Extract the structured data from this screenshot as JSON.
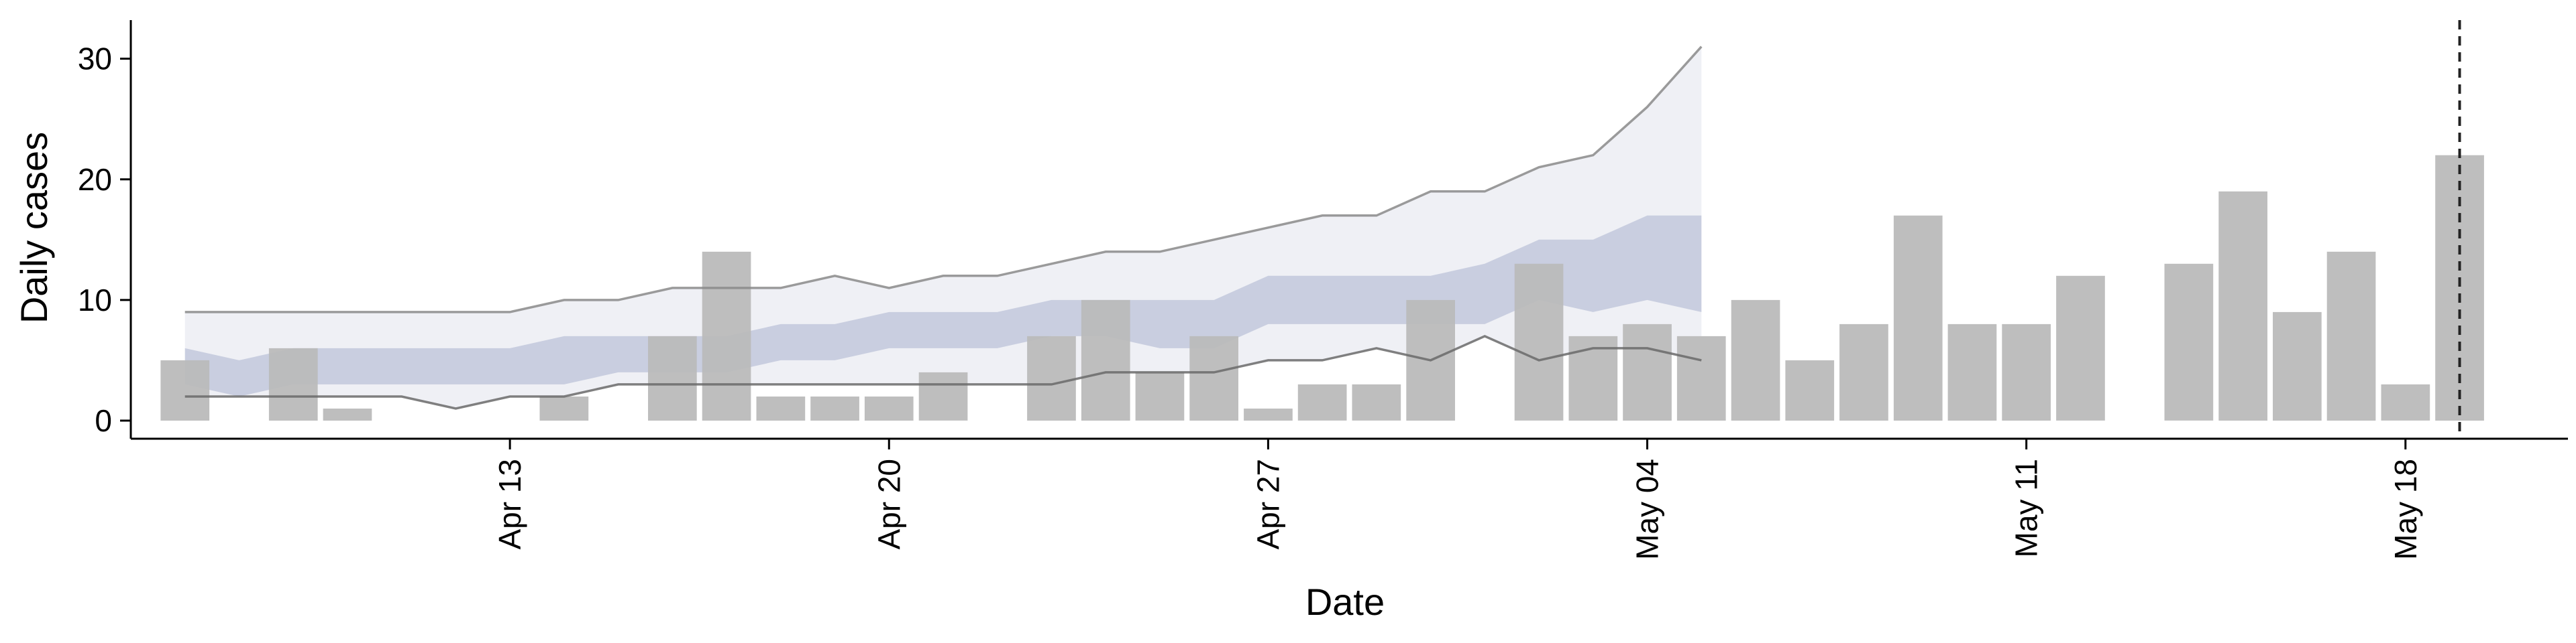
{
  "chart_data": {
    "type": "bar",
    "title": "",
    "xlabel": "Date",
    "ylabel": "Daily cases",
    "ylim": [
      -1.5,
      33.2
    ],
    "y_ticks": [
      0,
      10,
      20,
      30
    ],
    "x_ticks": [
      {
        "date": "2020-04-13",
        "label": "Apr 13"
      },
      {
        "date": "2020-04-20",
        "label": "Apr 20"
      },
      {
        "date": "2020-04-27",
        "label": "Apr 27"
      },
      {
        "date": "2020-05-04",
        "label": "May 04"
      },
      {
        "date": "2020-05-11",
        "label": "May 11"
      },
      {
        "date": "2020-05-18",
        "label": "May 18"
      }
    ],
    "x_range": [
      "2020-04-06",
      "2020-05-21"
    ],
    "grid": false,
    "legend": "none",
    "colors": {
      "bars": "#bbbbbb",
      "outer_band": "#dfe1ec",
      "inner_band": "#aab3cd",
      "outer_line": "#8a8a8a",
      "lower_line": "#6a6a6a",
      "vline": "#222222"
    },
    "bars": [
      {
        "date": "2020-04-07",
        "value": 5
      },
      {
        "date": "2020-04-09",
        "value": 6
      },
      {
        "date": "2020-04-10",
        "value": 1
      },
      {
        "date": "2020-04-14",
        "value": 2
      },
      {
        "date": "2020-04-16",
        "value": 7
      },
      {
        "date": "2020-04-17",
        "value": 14
      },
      {
        "date": "2020-04-18",
        "value": 2
      },
      {
        "date": "2020-04-19",
        "value": 2
      },
      {
        "date": "2020-04-20",
        "value": 2
      },
      {
        "date": "2020-04-21",
        "value": 4
      },
      {
        "date": "2020-04-23",
        "value": 7
      },
      {
        "date": "2020-04-24",
        "value": 10
      },
      {
        "date": "2020-04-25",
        "value": 4
      },
      {
        "date": "2020-04-26",
        "value": 7
      },
      {
        "date": "2020-04-27",
        "value": 1
      },
      {
        "date": "2020-04-28",
        "value": 3
      },
      {
        "date": "2020-04-29",
        "value": 3
      },
      {
        "date": "2020-04-30",
        "value": 10
      },
      {
        "date": "2020-05-02",
        "value": 13
      },
      {
        "date": "2020-05-03",
        "value": 7
      },
      {
        "date": "2020-05-04",
        "value": 8
      },
      {
        "date": "2020-05-05",
        "value": 7
      },
      {
        "date": "2020-05-06",
        "value": 10
      },
      {
        "date": "2020-05-07",
        "value": 5
      },
      {
        "date": "2020-05-08",
        "value": 8
      },
      {
        "date": "2020-05-09",
        "value": 17
      },
      {
        "date": "2020-05-10",
        "value": 8
      },
      {
        "date": "2020-05-11",
        "value": 8
      },
      {
        "date": "2020-05-12",
        "value": 12
      },
      {
        "date": "2020-05-14",
        "value": 13
      },
      {
        "date": "2020-05-15",
        "value": 19
      },
      {
        "date": "2020-05-16",
        "value": 9
      },
      {
        "date": "2020-05-17",
        "value": 14
      },
      {
        "date": "2020-05-18",
        "value": 3
      },
      {
        "date": "2020-05-19",
        "value": 22
      }
    ],
    "prediction_band": {
      "dates": [
        "2020-04-07",
        "2020-04-08",
        "2020-04-09",
        "2020-04-10",
        "2020-04-11",
        "2020-04-12",
        "2020-04-13",
        "2020-04-14",
        "2020-04-15",
        "2020-04-16",
        "2020-04-17",
        "2020-04-18",
        "2020-04-19",
        "2020-04-20",
        "2020-04-21",
        "2020-04-22",
        "2020-04-23",
        "2020-04-24",
        "2020-04-25",
        "2020-04-26",
        "2020-04-27",
        "2020-04-28",
        "2020-04-29",
        "2020-04-30",
        "2020-05-01",
        "2020-05-02",
        "2020-05-03",
        "2020-05-04",
        "2020-05-05"
      ],
      "outer_lower": [
        2,
        2,
        2,
        2,
        2,
        1,
        2,
        2,
        3,
        3,
        3,
        3,
        3,
        3,
        3,
        3,
        3,
        4,
        4,
        4,
        5,
        5,
        6,
        5,
        7,
        5,
        6,
        6,
        5
      ],
      "outer_upper": [
        9,
        9,
        9,
        9,
        9,
        9,
        9,
        10,
        10,
        11,
        11,
        11,
        12,
        11,
        12,
        12,
        13,
        14,
        14,
        15,
        16,
        17,
        17,
        19,
        19,
        21,
        22,
        26,
        31
      ],
      "inner_lower": [
        3,
        2,
        3,
        3,
        3,
        3,
        3,
        3,
        4,
        4,
        4,
        5,
        5,
        6,
        6,
        6,
        7,
        7,
        6,
        6,
        8,
        8,
        8,
        8,
        8,
        10,
        9,
        10,
        9
      ],
      "inner_upper": [
        6,
        5,
        6,
        6,
        6,
        6,
        6,
        7,
        7,
        7,
        7,
        8,
        8,
        9,
        9,
        9,
        10,
        10,
        10,
        10,
        12,
        12,
        12,
        12,
        13,
        15,
        15,
        17,
        17
      ]
    },
    "vline_date": "2020-05-19"
  }
}
